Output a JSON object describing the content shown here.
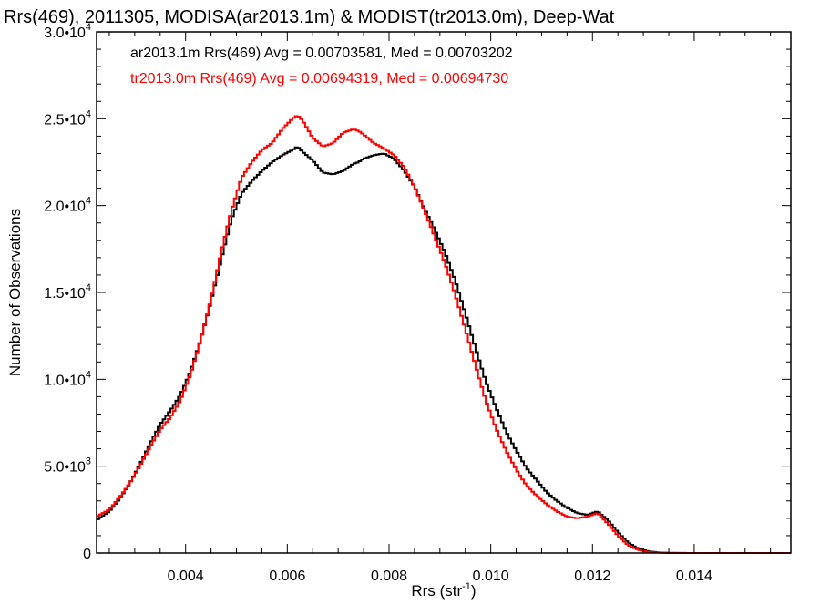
{
  "chart_data": {
    "type": "line",
    "title": "Rrs(469), 2011305, MODISA(ar2013.1m) & MODIST(tr2013.0m), Deep-Wat",
    "xlabel": "Rrs (str",
    "xlabel_sup": "-1",
    "xlabel_end": ")",
    "ylabel": "Number of Observations",
    "xlim": [
      0.00225,
      0.0159
    ],
    "ylim": [
      0,
      30000
    ],
    "grid": false,
    "legend_placement": "top-left",
    "x_ticks": [
      {
        "value": 0.004,
        "label": "0.004"
      },
      {
        "value": 0.006,
        "label": "0.006"
      },
      {
        "value": 0.008,
        "label": "0.008"
      },
      {
        "value": 0.01,
        "label": "0.010"
      },
      {
        "value": 0.012,
        "label": "0.012"
      },
      {
        "value": 0.014,
        "label": "0.014"
      }
    ],
    "y_ticks": [
      {
        "value": 0,
        "mantissa": "0",
        "exp": ""
      },
      {
        "value": 5000,
        "mantissa": "5.0•10",
        "exp": "3"
      },
      {
        "value": 10000,
        "mantissa": "1.0•10",
        "exp": "4"
      },
      {
        "value": 15000,
        "mantissa": "1.5•10",
        "exp": "4"
      },
      {
        "value": 20000,
        "mantissa": "2.0•10",
        "exp": "4"
      },
      {
        "value": 25000,
        "mantissa": "2.5•10",
        "exp": "4"
      },
      {
        "value": 30000,
        "mantissa": "3.0•10",
        "exp": "4"
      }
    ],
    "x": [
      0.00225,
      0.0025,
      0.0027,
      0.0029,
      0.0031,
      0.0033,
      0.0035,
      0.0037,
      0.0039,
      0.0041,
      0.0043,
      0.0045,
      0.0047,
      0.0049,
      0.0051,
      0.0053,
      0.0055,
      0.0057,
      0.0059,
      0.0061,
      0.0062,
      0.0063,
      0.0065,
      0.0067,
      0.0069,
      0.0071,
      0.0073,
      0.0074,
      0.0075,
      0.0077,
      0.0079,
      0.0081,
      0.0083,
      0.0085,
      0.0087,
      0.0089,
      0.0091,
      0.0093,
      0.0095,
      0.0097,
      0.0099,
      0.0101,
      0.0103,
      0.0105,
      0.0107,
      0.0109,
      0.0111,
      0.0113,
      0.0115,
      0.0117,
      0.0119,
      0.0121,
      0.0123,
      0.0125,
      0.0127,
      0.0129,
      0.0131,
      0.0133,
      0.0135,
      0.014,
      0.015,
      0.0159
    ],
    "series": [
      {
        "name": "ar2013.1m",
        "color": "#000000",
        "legend": "ar2013.1m Rrs(469) Avg = 0.00703581, Med = 0.00703202",
        "values": [
          1900,
          2400,
          3100,
          4000,
          5100,
          6300,
          7400,
          8200,
          9100,
          10500,
          12300,
          14500,
          16900,
          19200,
          20700,
          21400,
          22000,
          22500,
          22900,
          23200,
          23400,
          23100,
          22600,
          21900,
          21800,
          22000,
          22400,
          22500,
          22700,
          22900,
          23000,
          22700,
          22000,
          21100,
          19800,
          18600,
          17300,
          15700,
          13800,
          11800,
          9900,
          8400,
          7000,
          5900,
          4900,
          4200,
          3500,
          3000,
          2600,
          2300,
          2200,
          2400,
          1900,
          1200,
          600,
          250,
          100,
          30,
          10,
          0,
          0,
          0
        ]
      },
      {
        "name": "tr2013.0m",
        "color": "#ff0000",
        "legend": "tr2013.0m Rrs(469) Avg = 0.00694319, Med = 0.00694730",
        "values": [
          2100,
          2500,
          3200,
          4000,
          5000,
          6100,
          7100,
          7800,
          8800,
          10300,
          12300,
          14600,
          17300,
          19700,
          21600,
          22500,
          23200,
          23600,
          24400,
          25000,
          25200,
          24900,
          23900,
          23400,
          23600,
          24200,
          24400,
          24300,
          24100,
          23600,
          23300,
          22900,
          22200,
          21100,
          19700,
          18200,
          16700,
          14900,
          12900,
          10800,
          8800,
          7200,
          5900,
          4800,
          3900,
          3300,
          2800,
          2400,
          2100,
          2000,
          2100,
          2300,
          1700,
          1000,
          450,
          180,
          60,
          20,
          5,
          0,
          0,
          0
        ]
      }
    ]
  }
}
